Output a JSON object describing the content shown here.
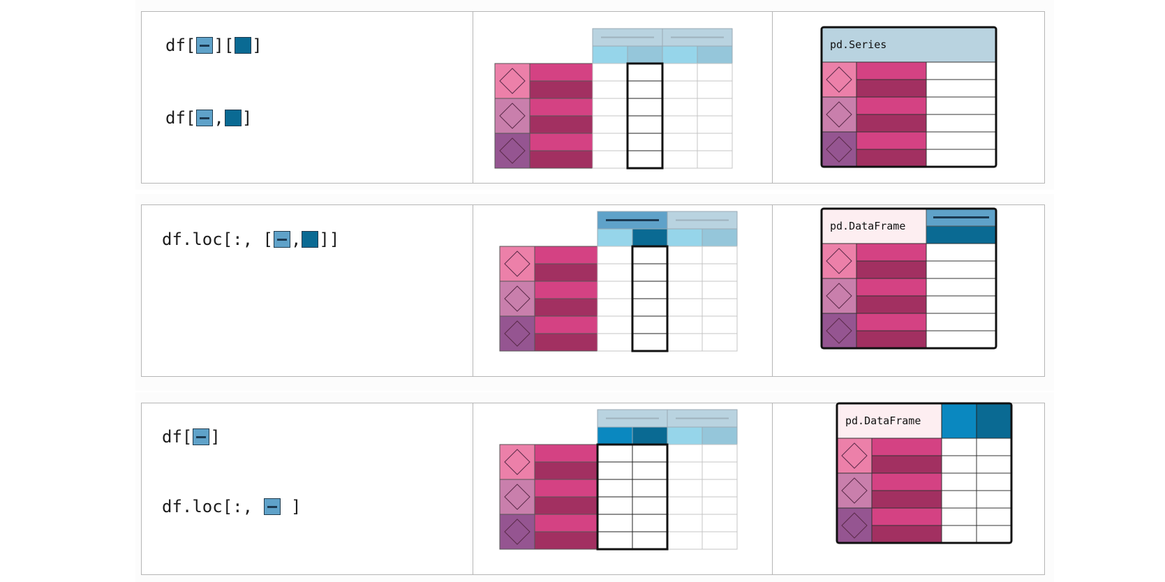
{
  "rows": [
    {
      "code_lines": [
        {
          "parts": [
            {
              "t": "text",
              "v": "df["
            },
            {
              "t": "chip",
              "v": "level"
            },
            {
              "t": "text",
              "v": "]["
            },
            {
              "t": "chip",
              "v": "column"
            },
            {
              "t": "text",
              "v": "]"
            }
          ]
        },
        {
          "parts": [
            {
              "t": "text",
              "v": "df["
            },
            {
              "t": "chip",
              "v": "level"
            },
            {
              "t": "text",
              "v": ","
            },
            {
              "t": "chip",
              "v": "column"
            },
            {
              "t": "text",
              "v": "]"
            }
          ]
        }
      ],
      "result_label": "pd.Series",
      "selection": "single-column"
    },
    {
      "code_lines": [
        {
          "parts": [
            {
              "t": "text",
              "v": "df.loc[:, ["
            },
            {
              "t": "chip",
              "v": "level"
            },
            {
              "t": "text",
              "v": ","
            },
            {
              "t": "chip",
              "v": "column"
            },
            {
              "t": "text",
              "v": "]]"
            }
          ]
        }
      ],
      "result_label": "pd.DataFrame",
      "selection": "single-column-keep-level"
    },
    {
      "code_lines": [
        {
          "parts": [
            {
              "t": "text",
              "v": "df["
            },
            {
              "t": "chip",
              "v": "level"
            },
            {
              "t": "text",
              "v": "]"
            }
          ]
        },
        {
          "parts": [
            {
              "t": "text",
              "v": "df.loc[:, "
            },
            {
              "t": "chip",
              "v": "level"
            },
            {
              "t": "text",
              "v": " ]"
            }
          ]
        }
      ],
      "result_label": "pd.DataFrame",
      "selection": "whole-level"
    }
  ],
  "colors": {
    "level_chip": "#5fa2c9",
    "column_chip": "#0a6a93",
    "header_light": "#b9d3e0",
    "subheader_a": "#96d5ea",
    "subheader_b": "#95c6da",
    "column_dark": "#0a6a93",
    "column_bright": "#0a88c0",
    "index_pink_light": "#ec80a9",
    "index_pink_mid": "#c97fac",
    "index_purple": "#955591",
    "row_pink": "#d44283",
    "row_wine": "#a23061",
    "label_bg_light": "#fdeef1",
    "border_bold": "#111111"
  }
}
